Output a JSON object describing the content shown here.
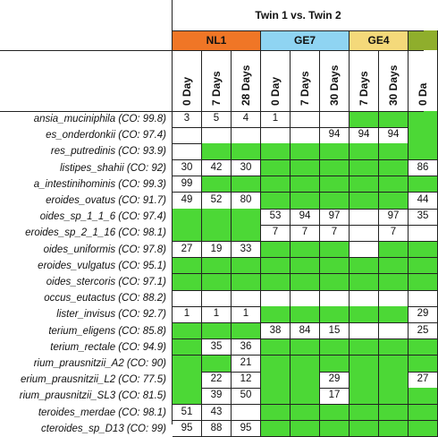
{
  "table": {
    "title": "Twin 1 vs. Twin 2",
    "groups": [
      {
        "label": "NL1",
        "color": "#f07626",
        "span": 3
      },
      {
        "label": "GE7",
        "color": "#8fd4f2",
        "span": 3
      },
      {
        "label": "GE4",
        "color": "#f4d97a",
        "span": 2
      },
      {
        "label": "",
        "color": "#8fae2c",
        "span": 1
      }
    ],
    "columns": [
      "0 Day",
      "7 Days",
      "28 Days",
      "0 Day",
      "7 Days",
      "30 Days",
      "7 Days",
      "30 Days",
      "0 Da"
    ],
    "rows": [
      {
        "label": "ansia_muciniphila (CO: 99.8)",
        "cells": [
          [
            "3",
            "w"
          ],
          [
            "5",
            "w"
          ],
          [
            "4",
            "w"
          ],
          [
            "1",
            "w"
          ],
          [
            "",
            "w"
          ],
          [
            "",
            "w"
          ],
          [
            "",
            "g"
          ],
          [
            "",
            "g"
          ],
          [
            "",
            "g"
          ]
        ]
      },
      {
        "label": "es_onderdonkii (CO: 97.4)",
        "cells": [
          [
            "",
            "w"
          ],
          [
            "",
            "w"
          ],
          [
            "",
            "w"
          ],
          [
            "",
            "w"
          ],
          [
            "",
            "w"
          ],
          [
            "94",
            "w"
          ],
          [
            "94",
            "w"
          ],
          [
            "94",
            "w"
          ],
          [
            "",
            "g"
          ]
        ]
      },
      {
        "label": "res_putredinis (CO: 93.9)",
        "cells": [
          [
            "",
            "w"
          ],
          [
            "",
            "g"
          ],
          [
            "",
            "g"
          ],
          [
            "",
            "g"
          ],
          [
            "",
            "g"
          ],
          [
            "",
            "g"
          ],
          [
            "",
            "g"
          ],
          [
            "",
            "g"
          ],
          [
            "",
            "g"
          ]
        ]
      },
      {
        "label": "listipes_shahii (CO: 92)",
        "cells": [
          [
            "30",
            "w"
          ],
          [
            "42",
            "w"
          ],
          [
            "30",
            "w"
          ],
          [
            "",
            "g"
          ],
          [
            "",
            "g"
          ],
          [
            "",
            "g"
          ],
          [
            "",
            "g"
          ],
          [
            "",
            "g"
          ],
          [
            "86",
            "w"
          ]
        ]
      },
      {
        "label": "a_intestinihominis (CO: 99.3)",
        "cells": [
          [
            "99",
            "w"
          ],
          [
            "",
            "g"
          ],
          [
            "",
            "g"
          ],
          [
            "",
            "g"
          ],
          [
            "",
            "g"
          ],
          [
            "",
            "g"
          ],
          [
            "",
            "g"
          ],
          [
            "",
            "g"
          ],
          [
            "",
            "g"
          ]
        ]
      },
      {
        "label": "eroides_ovatus (CO: 91.7)",
        "cells": [
          [
            "49",
            "w"
          ],
          [
            "52",
            "w"
          ],
          [
            "80",
            "w"
          ],
          [
            "",
            "g"
          ],
          [
            "",
            "g"
          ],
          [
            "",
            "g"
          ],
          [
            "",
            "g"
          ],
          [
            "",
            "g"
          ],
          [
            "44",
            "w"
          ]
        ]
      },
      {
        "label": "oides_sp_1_1_6 (CO: 97.4)",
        "cells": [
          [
            "",
            "g"
          ],
          [
            "",
            "g"
          ],
          [
            "",
            "g"
          ],
          [
            "53",
            "w"
          ],
          [
            "94",
            "w"
          ],
          [
            "97",
            "w"
          ],
          [
            "",
            "w"
          ],
          [
            "97",
            "w"
          ],
          [
            "35",
            "w"
          ]
        ]
      },
      {
        "label": "eroides_sp_2_1_16 (CO: 98.1)",
        "cells": [
          [
            "",
            "g"
          ],
          [
            "",
            "g"
          ],
          [
            "",
            "g"
          ],
          [
            "7",
            "w"
          ],
          [
            "7",
            "w"
          ],
          [
            "7",
            "w"
          ],
          [
            "",
            "w"
          ],
          [
            "7",
            "w"
          ],
          [
            "",
            "w"
          ]
        ]
      },
      {
        "label": "oides_uniformis (CO: 97.8)",
        "cells": [
          [
            "27",
            "w"
          ],
          [
            "19",
            "w"
          ],
          [
            "33",
            "w"
          ],
          [
            "",
            "g"
          ],
          [
            "",
            "g"
          ],
          [
            "",
            "g"
          ],
          [
            "",
            "w"
          ],
          [
            "",
            "g"
          ],
          [
            "",
            "g"
          ]
        ]
      },
      {
        "label": "eroides_vulgatus (CO: 95.1)",
        "cells": [
          [
            "",
            "g"
          ],
          [
            "",
            "g"
          ],
          [
            "",
            "g"
          ],
          [
            "",
            "g"
          ],
          [
            "",
            "g"
          ],
          [
            "",
            "g"
          ],
          [
            "",
            "g"
          ],
          [
            "",
            "g"
          ],
          [
            "",
            "g"
          ]
        ]
      },
      {
        "label": "oides_stercoris (CO: 97.1)",
        "cells": [
          [
            "",
            "g"
          ],
          [
            "",
            "g"
          ],
          [
            "",
            "g"
          ],
          [
            "",
            "g"
          ],
          [
            "",
            "g"
          ],
          [
            "",
            "g"
          ],
          [
            "",
            "g"
          ],
          [
            "",
            "g"
          ],
          [
            "",
            "g"
          ]
        ]
      },
      {
        "label": "occus_eutactus (CO: 88.2)",
        "cells": [
          [
            "",
            "w"
          ],
          [
            "",
            "w"
          ],
          [
            "",
            "w"
          ],
          [
            "",
            "w"
          ],
          [
            "",
            "w"
          ],
          [
            "",
            "w"
          ],
          [
            "",
            "w"
          ],
          [
            "",
            "w"
          ],
          [
            "",
            "w"
          ]
        ]
      },
      {
        "label": "lister_invisus (CO: 92.7)",
        "cells": [
          [
            "1",
            "w"
          ],
          [
            "1",
            "w"
          ],
          [
            "1",
            "w"
          ],
          [
            "",
            "g"
          ],
          [
            "",
            "g"
          ],
          [
            "",
            "g"
          ],
          [
            "",
            "g"
          ],
          [
            "",
            "g"
          ],
          [
            "29",
            "w"
          ]
        ]
      },
      {
        "label": "terium_eligens (CO: 85.8)",
        "cells": [
          [
            "",
            "g"
          ],
          [
            "",
            "g"
          ],
          [
            "",
            "g"
          ],
          [
            "38",
            "w"
          ],
          [
            "84",
            "w"
          ],
          [
            "15",
            "w"
          ],
          [
            "",
            "w"
          ],
          [
            "",
            "w"
          ],
          [
            "25",
            "w"
          ]
        ]
      },
      {
        "label": "terium_rectale (CO: 94.9)",
        "cells": [
          [
            "",
            "g"
          ],
          [
            "35",
            "w"
          ],
          [
            "36",
            "w"
          ],
          [
            "",
            "g"
          ],
          [
            "",
            "g"
          ],
          [
            "",
            "g"
          ],
          [
            "",
            "g"
          ],
          [
            "",
            "g"
          ],
          [
            "",
            "g"
          ]
        ]
      },
      {
        "label": "rium_prausnitzii_A2 (CO: 90)",
        "cells": [
          [
            "",
            "g"
          ],
          [
            "",
            "g"
          ],
          [
            "21",
            "w"
          ],
          [
            "",
            "g"
          ],
          [
            "",
            "g"
          ],
          [
            "",
            "g"
          ],
          [
            "",
            "g"
          ],
          [
            "",
            "g"
          ],
          [
            "",
            "g"
          ]
        ]
      },
      {
        "label": "erium_prausnitzii_L2 (CO: 77.5)",
        "cells": [
          [
            "",
            "g"
          ],
          [
            "22",
            "w"
          ],
          [
            "12",
            "w"
          ],
          [
            "",
            "g"
          ],
          [
            "",
            "g"
          ],
          [
            "29",
            "w"
          ],
          [
            "",
            "g"
          ],
          [
            "",
            "g"
          ],
          [
            "27",
            "w"
          ]
        ]
      },
      {
        "label": "rium_prausnitzii_SL3 (CO: 81.5)",
        "cells": [
          [
            "",
            "g"
          ],
          [
            "39",
            "w"
          ],
          [
            "50",
            "w"
          ],
          [
            "",
            "g"
          ],
          [
            "",
            "g"
          ],
          [
            "17",
            "w"
          ],
          [
            "",
            "g"
          ],
          [
            "",
            "g"
          ],
          [
            "",
            "g"
          ]
        ]
      },
      {
        "label": "teroides_merdae (CO: 98.1)",
        "cells": [
          [
            "51",
            "w"
          ],
          [
            "43",
            "w"
          ],
          [
            "",
            "w"
          ],
          [
            "",
            "g"
          ],
          [
            "",
            "g"
          ],
          [
            "",
            "g"
          ],
          [
            "",
            "g"
          ],
          [
            "",
            "g"
          ],
          [
            "",
            "g"
          ]
        ]
      },
      {
        "label": "cteroides_sp_D13 (CO: 99)",
        "cells": [
          [
            "95",
            "w"
          ],
          [
            "88",
            "w"
          ],
          [
            "95",
            "w"
          ],
          [
            "",
            "g"
          ],
          [
            "",
            "g"
          ],
          [
            "",
            "g"
          ],
          [
            "",
            "g"
          ],
          [
            "",
            "g"
          ],
          [
            "",
            "g"
          ]
        ]
      }
    ]
  }
}
